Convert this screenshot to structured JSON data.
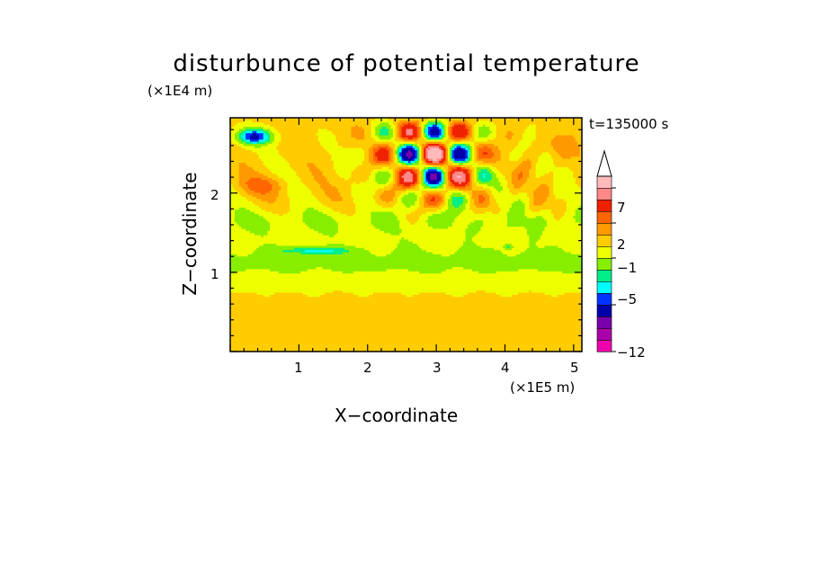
{
  "chart_data": {
    "type": "heatmap",
    "title": "disturbunce of potential temperature",
    "xlabel": "X−coordinate",
    "ylabel": "Z−coordinate",
    "x_scale_label": "(×1E5 m)",
    "y_scale_label": "(×1E4 m)",
    "time_label": "t=135000 s",
    "xlim": [
      0,
      5.12
    ],
    "ylim": [
      0,
      2.95
    ],
    "x_ticks": [
      "1",
      "2",
      "3",
      "4",
      "5"
    ],
    "y_ticks": [
      "1",
      "2"
    ],
    "x_tick_values": [
      1,
      2,
      3,
      4,
      5
    ],
    "y_tick_values": [
      1,
      2
    ],
    "colorbar": {
      "levels": [
        -12,
        -11,
        -9,
        -7,
        -5,
        -4,
        -3,
        -2,
        -1,
        0,
        1,
        2,
        3,
        5,
        7,
        9,
        11
      ],
      "tick_labels": [
        "−12",
        "−5",
        "−1",
        "2",
        "7"
      ],
      "tick_values": [
        -12,
        -5,
        -1,
        2,
        7
      ],
      "colors": [
        "#ee00aa",
        "#aa00aa",
        "#7700aa",
        "#0000aa",
        "#0033ff",
        "#00ffff",
        "#00ee88",
        "#88ee00",
        "#eeff00",
        "#ffcc00",
        "#ff9900",
        "#ff6600",
        "#ee2200",
        "#ff8888",
        "#ffbbbb"
      ]
    },
    "features": [
      {
        "name": "lower-warm-band",
        "x_range": [
          0,
          5.12
        ],
        "z_range": [
          0,
          0.75
        ],
        "value": 0.3
      },
      {
        "name": "cold-band",
        "x_range": [
          0,
          5.12
        ],
        "z_range": [
          0.8,
          1.45
        ],
        "value": -1.2
      },
      {
        "name": "cold-band-core",
        "center": [
          1.2,
          1.27
        ],
        "value": -3.5
      },
      {
        "name": "wave-packet-max",
        "center": [
          2.97,
          2.5
        ],
        "value": 10
      },
      {
        "name": "wave-packet-min",
        "center": [
          2.97,
          2.25
        ],
        "value": -6
      },
      {
        "name": "upper-left-cold-spot",
        "center": [
          0.35,
          2.72
        ],
        "value": -4.5
      }
    ]
  }
}
